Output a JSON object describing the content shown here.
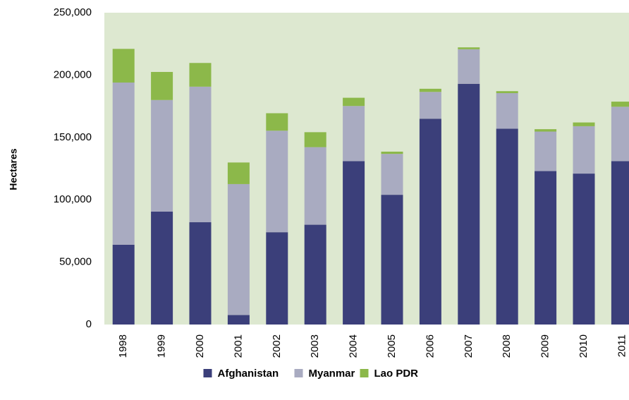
{
  "chart_data": {
    "type": "stacked_bar",
    "y_label": "Hectares",
    "categories": [
      "1998",
      "1999",
      "2000",
      "2001",
      "2002",
      "2003",
      "2004",
      "2005",
      "2006",
      "2007",
      "2008",
      "2009",
      "2010",
      "2011"
    ],
    "series": [
      {
        "name": "Afghanistan",
        "color": "#3b3f7a",
        "values": [
          64000,
          90500,
          82000,
          7600,
          74000,
          80000,
          131000,
          104000,
          165000,
          193000,
          157000,
          123000,
          121000,
          131000
        ]
      },
      {
        "name": "Myanmar",
        "color": "#a9abc1",
        "values": [
          130000,
          89500,
          108700,
          105000,
          81400,
          62200,
          44200,
          32800,
          21500,
          27700,
          28500,
          31700,
          38000,
          43600
        ]
      },
      {
        "name": "Lao PDR",
        "color": "#8cb84a",
        "values": [
          27000,
          22500,
          19000,
          17300,
          14000,
          12000,
          6600,
          1800,
          2500,
          1500,
          1600,
          1900,
          3000,
          4100
        ]
      }
    ],
    "ylim": [
      0,
      250000
    ],
    "yticks": [
      0,
      {
        "value": 50000,
        "label": "50,000"
      },
      {
        "value": 100000,
        "label": "100,000"
      },
      {
        "value": 150000,
        "label": "150,000"
      },
      {
        "value": 200000,
        "label": "200,000"
      },
      {
        "value": 250000,
        "label": "250,000"
      }
    ],
    "plot_background": "#dde8d0",
    "legend": "bottom"
  }
}
